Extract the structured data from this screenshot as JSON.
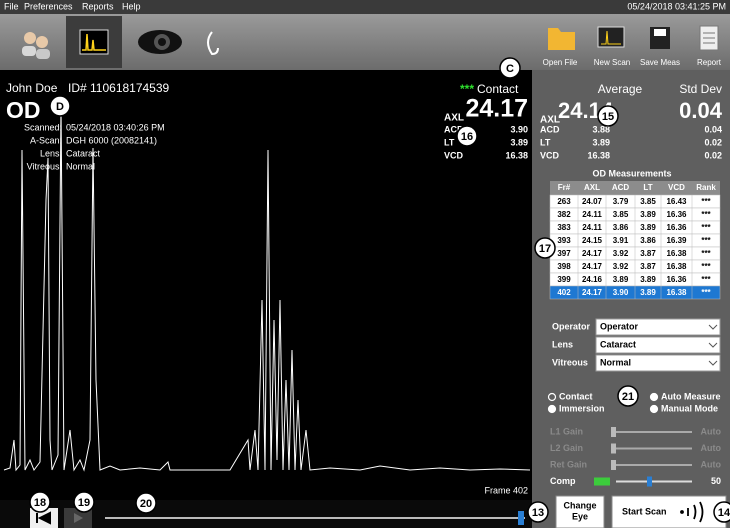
{
  "menu": [
    "File",
    "Preferences",
    "Reports",
    "Help"
  ],
  "datetime": "05/24/2018 03:41:25 PM",
  "toolbar": [
    "Open File",
    "New Scan",
    "Save Meas",
    "Report"
  ],
  "patient": {
    "name": "John Doe",
    "id": "ID# 110618174539",
    "eye": "OD",
    "fields": [
      [
        "Scanned:",
        "05/24/2018 03:40:26 PM"
      ],
      [
        "A-Scan:",
        "DGH 6000 (20082141)"
      ],
      [
        "Lens:",
        "Cataract"
      ],
      [
        "Vitreous:",
        "Normal"
      ]
    ]
  },
  "current": {
    "stars": "***",
    "mode": "Contact",
    "rows": [
      [
        "AXL",
        "24.17"
      ],
      [
        "ACD",
        "3.90"
      ],
      [
        "LT",
        "3.89"
      ],
      [
        "VCD",
        "16.38"
      ]
    ]
  },
  "frame": "Frame 402",
  "summary": {
    "headers": [
      "Average",
      "Std Dev"
    ],
    "rows": [
      [
        "AXL",
        "24.14",
        "0.04"
      ],
      [
        "ACD",
        "3.88",
        "0.04"
      ],
      [
        "LT",
        "3.89",
        "0.02"
      ],
      [
        "VCD",
        "16.38",
        "0.02"
      ]
    ]
  },
  "table": {
    "title": "OD Measurements",
    "columns": [
      "Fr#",
      "AXL",
      "ACD",
      "LT",
      "VCD",
      "Rank"
    ],
    "rows": [
      [
        "263",
        "24.07",
        "3.79",
        "3.85",
        "16.43",
        "***"
      ],
      [
        "382",
        "24.11",
        "3.85",
        "3.89",
        "16.36",
        "***"
      ],
      [
        "383",
        "24.11",
        "3.86",
        "3.89",
        "16.36",
        "***"
      ],
      [
        "393",
        "24.15",
        "3.91",
        "3.86",
        "16.39",
        "***"
      ],
      [
        "397",
        "24.17",
        "3.92",
        "3.87",
        "16.38",
        "***"
      ],
      [
        "398",
        "24.17",
        "3.92",
        "3.87",
        "16.38",
        "***"
      ],
      [
        "399",
        "24.16",
        "3.89",
        "3.89",
        "16.36",
        "***"
      ],
      [
        "402",
        "24.17",
        "3.90",
        "3.89",
        "16.38",
        "***"
      ]
    ],
    "selected_row": 7
  },
  "settings": [
    [
      "Operator",
      "Operator"
    ],
    [
      "Lens",
      "Cataract"
    ],
    [
      "Vitreous",
      "Normal"
    ]
  ],
  "options": [
    "Contact",
    "Auto Measure",
    "Immersion",
    "Manual Mode"
  ],
  "gains": [
    [
      "L1 Gain",
      "Auto"
    ],
    [
      "L2 Gain",
      "Auto"
    ],
    [
      "Ret Gain",
      "Auto"
    ],
    [
      "Comp",
      "50"
    ]
  ],
  "change_eye": [
    "Change",
    "Eye"
  ],
  "start_scan": "Start Scan",
  "annotations": [
    "C",
    "D",
    "16",
    "15",
    "17",
    "21",
    "13",
    "14",
    "18",
    "19",
    "20"
  ]
}
